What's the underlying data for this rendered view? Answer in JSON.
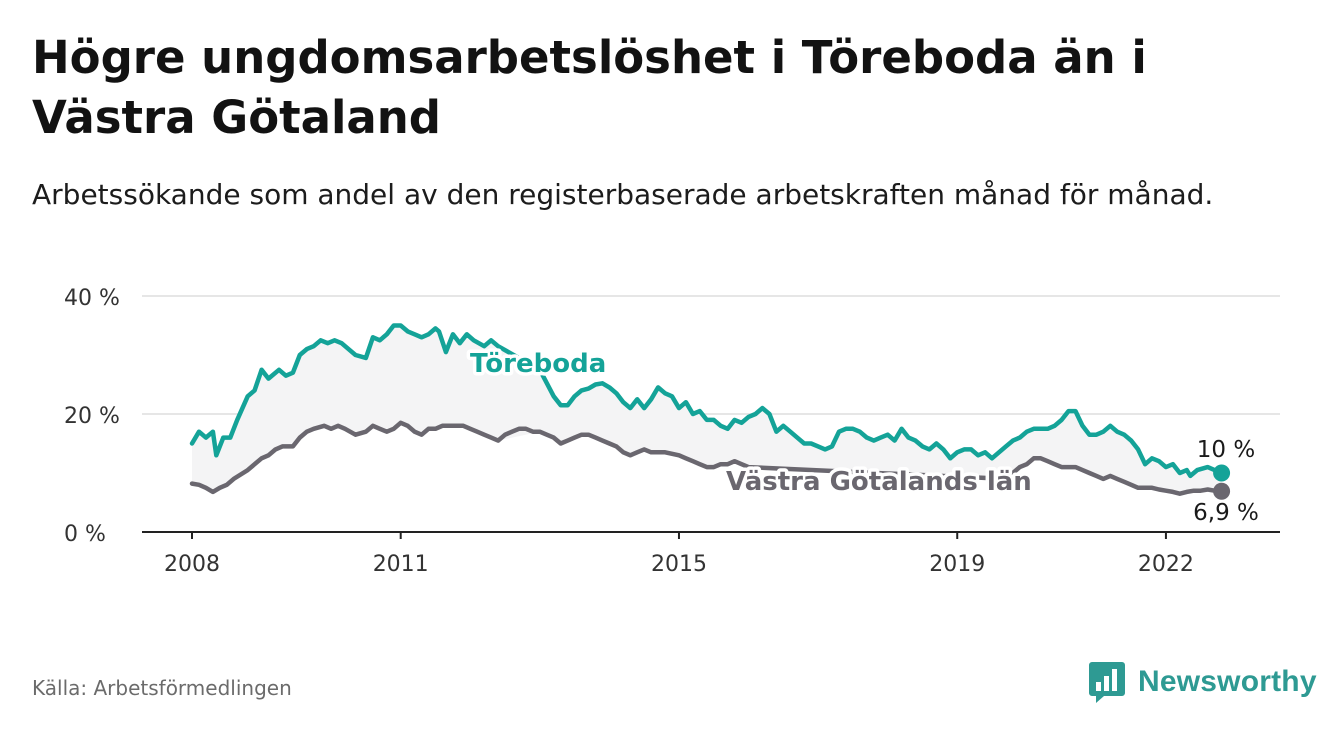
{
  "title": "Högre ungdomsarbetslöshet i Töreboda än i Västra Götaland",
  "subtitle": "Arbetssökande som andel av den registerbaserade arbetskraften månad för månad.",
  "source": "Källa: Arbetsförmedlingen",
  "brand": "Newsworthy",
  "colors": {
    "toreboda": "#14a398",
    "vg": "#6a676f",
    "band": "#f4f4f5",
    "grid": "#dddddd",
    "axis": "#222222"
  },
  "chart_data": {
    "type": "line",
    "title": "Högre ungdomsarbetslöshet i Töreboda än i Västra Götaland",
    "xlabel": "",
    "ylabel": "",
    "xlim": [
      2008.0,
      2023.0
    ],
    "ylim": [
      0,
      40
    ],
    "y_ticks": [
      0,
      20,
      40
    ],
    "y_tick_labels": [
      "0 %",
      "20 %",
      "40 %"
    ],
    "x_ticks": [
      2008,
      2011,
      2015,
      2019,
      2022
    ],
    "x_tick_labels": [
      "2008",
      "2011",
      "2015",
      "2019",
      "2022"
    ],
    "grid": true,
    "series": [
      {
        "name": "Töreboda",
        "label": "Töreboda",
        "end_label": "10 %",
        "points": [
          [
            2008.0,
            15.0
          ],
          [
            2008.1,
            17.0
          ],
          [
            2008.2,
            16.0
          ],
          [
            2008.3,
            17.0
          ],
          [
            2008.35,
            13.0
          ],
          [
            2008.45,
            16.0
          ],
          [
            2008.55,
            16.0
          ],
          [
            2008.65,
            19.0
          ],
          [
            2008.8,
            23.0
          ],
          [
            2008.9,
            24.0
          ],
          [
            2009.0,
            27.5
          ],
          [
            2009.1,
            26.0
          ],
          [
            2009.25,
            27.5
          ],
          [
            2009.35,
            26.5
          ],
          [
            2009.45,
            27.0
          ],
          [
            2009.55,
            30.0
          ],
          [
            2009.65,
            31.0
          ],
          [
            2009.75,
            31.5
          ],
          [
            2009.85,
            32.5
          ],
          [
            2009.95,
            32.0
          ],
          [
            2010.05,
            32.5
          ],
          [
            2010.15,
            32.0
          ],
          [
            2010.25,
            31.0
          ],
          [
            2010.35,
            30.0
          ],
          [
            2010.5,
            29.5
          ],
          [
            2010.6,
            33.0
          ],
          [
            2010.7,
            32.5
          ],
          [
            2010.8,
            33.5
          ],
          [
            2010.9,
            35.0
          ],
          [
            2011.0,
            35.0
          ],
          [
            2011.1,
            34.0
          ],
          [
            2011.2,
            33.5
          ],
          [
            2011.3,
            33.0
          ],
          [
            2011.4,
            33.5
          ],
          [
            2011.5,
            34.5
          ],
          [
            2011.55,
            34.0
          ],
          [
            2011.65,
            30.5
          ],
          [
            2011.75,
            33.5
          ],
          [
            2011.85,
            32.0
          ],
          [
            2011.95,
            33.5
          ],
          [
            2012.05,
            32.5
          ],
          [
            2012.2,
            31.5
          ],
          [
            2012.3,
            32.5
          ],
          [
            2012.4,
            31.5
          ],
          [
            2013.0,
            27.5
          ],
          [
            2013.2,
            23.0
          ],
          [
            2013.3,
            21.5
          ],
          [
            2013.4,
            21.5
          ],
          [
            2013.5,
            23.0
          ],
          [
            2013.6,
            24.0
          ],
          [
            2013.7,
            24.3
          ],
          [
            2013.8,
            25.0
          ],
          [
            2013.9,
            25.2
          ],
          [
            2014.0,
            24.5
          ],
          [
            2014.1,
            23.5
          ],
          [
            2014.2,
            22.0
          ],
          [
            2014.3,
            21.0
          ],
          [
            2014.4,
            22.5
          ],
          [
            2014.5,
            21.0
          ],
          [
            2014.6,
            22.5
          ],
          [
            2014.7,
            24.5
          ],
          [
            2014.8,
            23.5
          ],
          [
            2014.9,
            23.0
          ],
          [
            2015.0,
            21.0
          ],
          [
            2015.1,
            22.0
          ],
          [
            2015.2,
            20.0
          ],
          [
            2015.3,
            20.5
          ],
          [
            2015.4,
            19.0
          ],
          [
            2015.5,
            19.0
          ],
          [
            2015.6,
            18.0
          ],
          [
            2015.7,
            17.5
          ],
          [
            2015.8,
            19.0
          ],
          [
            2015.9,
            18.5
          ],
          [
            2016.0,
            19.5
          ],
          [
            2016.1,
            20.0
          ],
          [
            2016.2,
            21.0
          ],
          [
            2016.3,
            20.0
          ],
          [
            2016.4,
            17.0
          ],
          [
            2016.5,
            18.0
          ],
          [
            2016.6,
            17.0
          ],
          [
            2016.7,
            16.0
          ],
          [
            2016.8,
            15.0
          ],
          [
            2016.9,
            15.0
          ],
          [
            2017.0,
            14.5
          ],
          [
            2017.1,
            14.0
          ],
          [
            2017.2,
            14.5
          ],
          [
            2017.3,
            17.0
          ],
          [
            2017.4,
            17.5
          ],
          [
            2017.5,
            17.5
          ],
          [
            2017.6,
            17.0
          ],
          [
            2017.7,
            16.0
          ],
          [
            2017.8,
            15.5
          ],
          [
            2017.9,
            16.0
          ],
          [
            2018.0,
            16.5
          ],
          [
            2018.1,
            15.5
          ],
          [
            2018.2,
            17.5
          ],
          [
            2018.3,
            16.0
          ],
          [
            2018.4,
            15.5
          ],
          [
            2018.5,
            14.5
          ],
          [
            2018.6,
            14.0
          ],
          [
            2018.7,
            15.0
          ],
          [
            2018.8,
            14.0
          ],
          [
            2018.9,
            12.5
          ],
          [
            2019.0,
            13.5
          ],
          [
            2019.1,
            14.0
          ],
          [
            2019.2,
            14.0
          ],
          [
            2019.3,
            13.0
          ],
          [
            2019.4,
            13.5
          ],
          [
            2019.5,
            12.5
          ],
          [
            2019.6,
            13.5
          ],
          [
            2019.7,
            14.5
          ],
          [
            2019.8,
            15.5
          ],
          [
            2019.9,
            16.0
          ],
          [
            2020.0,
            17.0
          ],
          [
            2020.1,
            17.5
          ],
          [
            2020.2,
            17.5
          ],
          [
            2020.3,
            17.5
          ],
          [
            2020.4,
            18.0
          ],
          [
            2020.5,
            19.0
          ],
          [
            2020.6,
            20.5
          ],
          [
            2020.7,
            20.5
          ],
          [
            2020.8,
            18.0
          ],
          [
            2020.9,
            16.5
          ],
          [
            2021.0,
            16.5
          ],
          [
            2021.1,
            17.0
          ],
          [
            2021.2,
            18.0
          ],
          [
            2021.3,
            17.0
          ],
          [
            2021.4,
            16.5
          ],
          [
            2021.5,
            15.5
          ],
          [
            2021.6,
            14.0
          ],
          [
            2021.7,
            11.5
          ],
          [
            2021.8,
            12.5
          ],
          [
            2021.9,
            12.0
          ],
          [
            2022.0,
            11.0
          ],
          [
            2022.1,
            11.5
          ],
          [
            2022.2,
            10.0
          ],
          [
            2022.3,
            10.5
          ],
          [
            2022.35,
            9.5
          ],
          [
            2022.45,
            10.5
          ],
          [
            2022.6,
            11.0
          ],
          [
            2022.7,
            10.5
          ],
          [
            2022.8,
            10.0
          ]
        ]
      },
      {
        "name": "Västra Götalands län",
        "label": "Västra Götalands län",
        "end_label": "6,9 %",
        "points": [
          [
            2008.0,
            8.2
          ],
          [
            2008.1,
            8.0
          ],
          [
            2008.2,
            7.5
          ],
          [
            2008.3,
            6.8
          ],
          [
            2008.4,
            7.5
          ],
          [
            2008.5,
            8.0
          ],
          [
            2008.6,
            9.0
          ],
          [
            2008.8,
            10.5
          ],
          [
            2008.9,
            11.5
          ],
          [
            2009.0,
            12.5
          ],
          [
            2009.1,
            13.0
          ],
          [
            2009.2,
            14.0
          ],
          [
            2009.3,
            14.5
          ],
          [
            2009.45,
            14.5
          ],
          [
            2009.55,
            16.0
          ],
          [
            2009.65,
            17.0
          ],
          [
            2009.75,
            17.5
          ],
          [
            2009.9,
            18.0
          ],
          [
            2010.0,
            17.5
          ],
          [
            2010.1,
            18.0
          ],
          [
            2010.2,
            17.5
          ],
          [
            2010.35,
            16.5
          ],
          [
            2010.5,
            17.0
          ],
          [
            2010.6,
            18.0
          ],
          [
            2010.7,
            17.5
          ],
          [
            2010.8,
            17.0
          ],
          [
            2010.9,
            17.5
          ],
          [
            2011.0,
            18.5
          ],
          [
            2011.1,
            18.0
          ],
          [
            2011.2,
            17.0
          ],
          [
            2011.3,
            16.5
          ],
          [
            2011.4,
            17.5
          ],
          [
            2011.5,
            17.5
          ],
          [
            2011.6,
            18.0
          ],
          [
            2011.7,
            18.0
          ],
          [
            2011.8,
            18.0
          ],
          [
            2011.9,
            18.0
          ],
          [
            2012.0,
            17.5
          ],
          [
            2012.1,
            17.0
          ],
          [
            2012.2,
            16.5
          ],
          [
            2012.3,
            16.0
          ],
          [
            2012.4,
            15.5
          ],
          [
            2012.5,
            16.5
          ],
          [
            2012.6,
            17.0
          ],
          [
            2012.7,
            17.5
          ],
          [
            2012.8,
            17.5
          ],
          [
            2012.9,
            17.0
          ],
          [
            2013.0,
            17.0
          ],
          [
            2013.1,
            16.5
          ],
          [
            2013.2,
            16.0
          ],
          [
            2013.3,
            15.0
          ],
          [
            2013.4,
            15.5
          ],
          [
            2013.5,
            16.0
          ],
          [
            2013.6,
            16.5
          ],
          [
            2013.7,
            16.5
          ],
          [
            2013.8,
            16.0
          ],
          [
            2013.9,
            15.5
          ],
          [
            2014.0,
            15.0
          ],
          [
            2014.1,
            14.5
          ],
          [
            2014.2,
            13.5
          ],
          [
            2014.3,
            13.0
          ],
          [
            2014.4,
            13.5
          ],
          [
            2014.5,
            14.0
          ],
          [
            2014.6,
            13.5
          ],
          [
            2014.7,
            13.5
          ],
          [
            2014.8,
            13.5
          ],
          [
            2015.0,
            13.0
          ],
          [
            2015.1,
            12.5
          ],
          [
            2015.2,
            12.0
          ],
          [
            2015.3,
            11.5
          ],
          [
            2015.4,
            11.0
          ],
          [
            2015.5,
            11.0
          ],
          [
            2015.6,
            11.5
          ],
          [
            2015.7,
            11.5
          ],
          [
            2015.8,
            12.0
          ],
          [
            2015.9,
            11.5
          ],
          [
            2016.0,
            11.0
          ],
          [
            2019.7,
            9.0
          ],
          [
            2019.8,
            10.0
          ],
          [
            2019.9,
            11.0
          ],
          [
            2020.0,
            11.5
          ],
          [
            2020.1,
            12.5
          ],
          [
            2020.2,
            12.5
          ],
          [
            2020.3,
            12.0
          ],
          [
            2020.4,
            11.5
          ],
          [
            2020.5,
            11.0
          ],
          [
            2020.6,
            11.0
          ],
          [
            2020.7,
            11.0
          ],
          [
            2020.8,
            10.5
          ],
          [
            2020.9,
            10.0
          ],
          [
            2021.0,
            9.5
          ],
          [
            2021.1,
            9.0
          ],
          [
            2021.2,
            9.5
          ],
          [
            2021.3,
            9.0
          ],
          [
            2021.4,
            8.5
          ],
          [
            2021.5,
            8.0
          ],
          [
            2021.6,
            7.5
          ],
          [
            2021.7,
            7.5
          ],
          [
            2021.8,
            7.5
          ],
          [
            2021.9,
            7.2
          ],
          [
            2022.0,
            7.0
          ],
          [
            2022.1,
            6.8
          ],
          [
            2022.2,
            6.5
          ],
          [
            2022.3,
            6.8
          ],
          [
            2022.4,
            7.0
          ],
          [
            2022.5,
            7.0
          ],
          [
            2022.6,
            7.2
          ],
          [
            2022.7,
            7.0
          ],
          [
            2022.8,
            6.9
          ]
        ]
      }
    ]
  }
}
